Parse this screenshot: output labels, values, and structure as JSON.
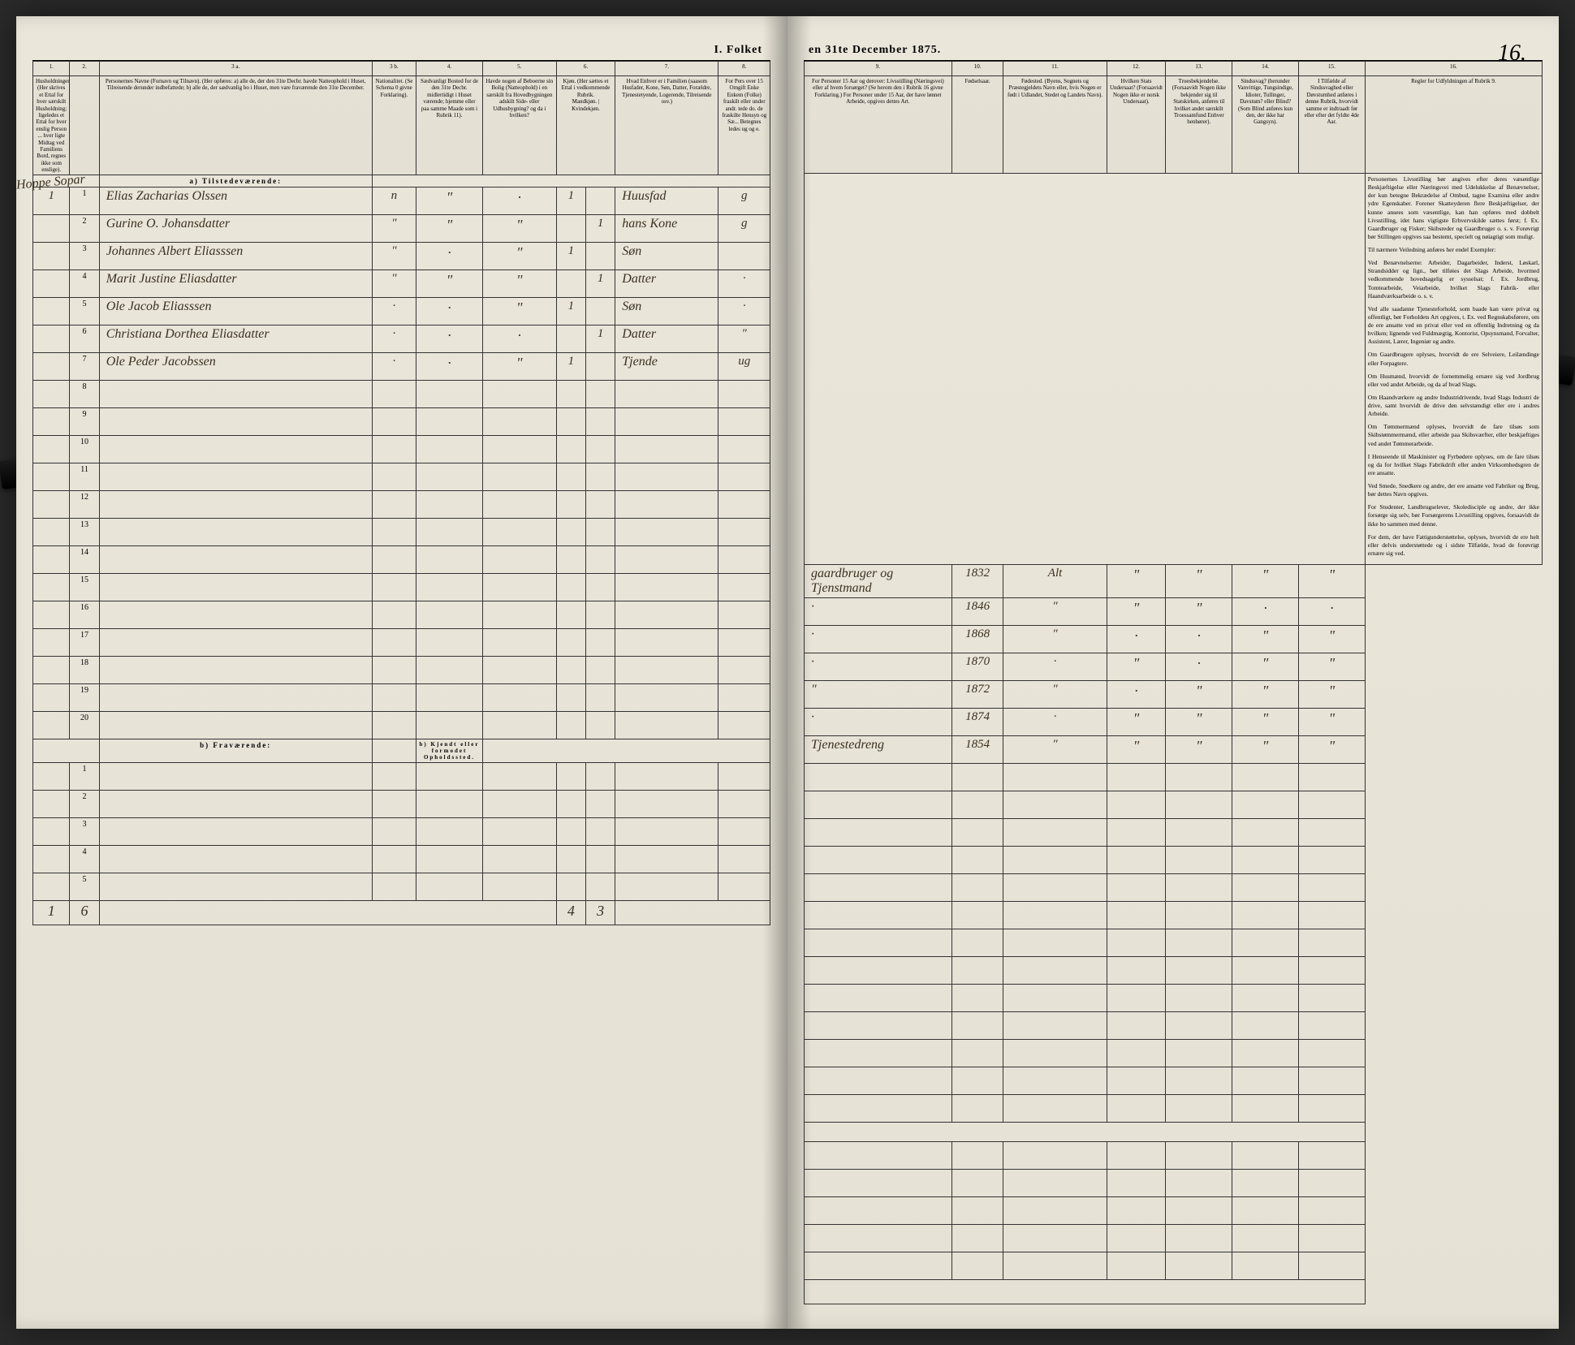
{
  "title_left": "I. Folket",
  "title_right": "en 31te December 1875.",
  "page_number": "16.",
  "margin_note": "Hoppe\nSopar",
  "columns": {
    "left_nums": [
      "1.",
      "2.",
      "3 a.",
      "3 b.",
      "4.",
      "5.",
      "6.",
      "7.",
      "8."
    ],
    "right_nums": [
      "9.",
      "10.",
      "11.",
      "12.",
      "13.",
      "14.",
      "15.",
      "16."
    ],
    "h1": "Husholdninger. (Her skrives et Ettal for hver særskilt Husholdning; ligeledes et Ettal for hver enslig Person ... hver ligte Midtag ved Familiens Bord, regnes ikke som enslige).",
    "h3a": "Personernes Navne (Fornavn og Tilnavn). (Her opføres: a) alle de, der den 31te Decbr. havde Natteophold i Huset, Tilreisende derunder indbefattede; b) alle de, der sædvanlig bo i Huset, men vare fraværende den 31te December.",
    "h3b": "Nationalitet. (Se Schema 0 givne Forklaring).",
    "h4": "Sædvanligt Bosted for de den 31te Decbr. midlertidigt i Huset værende; hjemme eller paa samme Maade som i Rubrik 11).",
    "h5": "Havde nogen af Beboerne sin Bolig (Natteophold) i en særskilt fra Hovedbygningen adskilt Side- eller Udhusbygning? og da i hvilken?",
    "h6": "Kjøn. (Her sættes et Ettal i vedkommende Rubrik.",
    "h6a": "Mandkjøn.",
    "h6b": "Kvindekjøn.",
    "h7": "Hvad Enhver er i Familien (saasom Husfader, Kone, Søn, Datter, Forældre, Tjenestetyende, Logerende, Tilreisende osv.)",
    "h8": "For Pers over 15 Omgift Enke Enkem (Folke) fraskilt eller under andr. tede do. de fraskilte Hensyn og Sæ... Betegnes ledes ug og e.",
    "h9": "For Personer 15 Aar og derover: Livsstilling (Næringsvei) eller af hvem forsørget? (Se herom den i Rubrik 16 givne Forklaring.) For Personer under 15 Aar, der have lønnet Arbeide, opgives dettes Art.",
    "h10": "Fødselsaar.",
    "h11": "Fødested. (Byens, Sognets og Præstegjeldets Navn eller, hvis Nogen er født i Udlandet, Stedet og Landets Navn).",
    "h12": "Hvilken Stats Undersaat? (Forsaavidt Nogen ikke er norsk Undersaat).",
    "h13": "Troesbekjendelse. (Forsaavidt Nogen ikke bekjender sig til Statskirken, anføres til hvilket andet særskilt Troessamfund Enhver henhører).",
    "h14": "Sindssvag? (herunder Vanvittige, Tungsindige, Idioter, Tullinger, Davstum? eller Blind? (Som Blind anføres kun den, der ikke har Gangsyn).",
    "h15": "I Tilfælde af Sindssvaghed eller Døvstumhed anføres i denne Rubrik, hvorvidt samme er indtraadt før eller efter det fyldte 4de Aar.",
    "h16_title": "Regler for Udfyldningen af Rubrik 9."
  },
  "section_a": "a) Tilstedeværende:",
  "section_b": "b) Fraværende:",
  "section_b_note": "b) Kjendt eller formodet Opholdssted.",
  "rows": [
    {
      "hh": "1",
      "n": "1",
      "name": "Elias Zacharias Olssen",
      "nat": "n",
      "c4": "\"",
      "c5": "·",
      "m": "1",
      "k": "",
      "fam": "Huusfad",
      "ms": "g",
      "occ": "gaardbruger og Tjenstmand",
      "yr": "1832",
      "born": "Alt",
      "c12": "\"",
      "c13": "\"",
      "c14": "\"",
      "c15": "\""
    },
    {
      "hh": "",
      "n": "2",
      "name": "Gurine O. Johansdatter",
      "nat": "\"",
      "c4": "\"",
      "c5": "\"",
      "m": "",
      "k": "1",
      "fam": "hans Kone",
      "ms": "g",
      "occ": "·",
      "yr": "1846",
      "born": "\"",
      "c12": "\"",
      "c13": "\"",
      "c14": "·",
      "c15": "·"
    },
    {
      "hh": "",
      "n": "3",
      "name": "Johannes Albert Eliasssen",
      "nat": "\"",
      "c4": "·",
      "c5": "\"",
      "m": "1",
      "k": "",
      "fam": "Søn",
      "ms": "",
      "occ": "·",
      "yr": "1868",
      "born": "\"",
      "c12": "·",
      "c13": "·",
      "c14": "\"",
      "c15": "\""
    },
    {
      "hh": "",
      "n": "4",
      "name": "Marit Justine Eliasdatter",
      "nat": "\"",
      "c4": "\"",
      "c5": "\"",
      "m": "",
      "k": "1",
      "fam": "Datter",
      "ms": "·",
      "occ": "·",
      "yr": "1870",
      "born": "·",
      "c12": "\"",
      "c13": "·",
      "c14": "\"",
      "c15": "\""
    },
    {
      "hh": "",
      "n": "5",
      "name": "Ole Jacob Eliasssen",
      "nat": "·",
      "c4": "·",
      "c5": "\"",
      "m": "1",
      "k": "",
      "fam": "Søn",
      "ms": "·",
      "occ": "\"",
      "yr": "1872",
      "born": "\"",
      "c12": "·",
      "c13": "\"",
      "c14": "\"",
      "c15": "\""
    },
    {
      "hh": "",
      "n": "6",
      "name": "Christiana Dorthea Eliasdatter",
      "nat": "·",
      "c4": "·",
      "c5": "·",
      "m": "",
      "k": "1",
      "fam": "Datter",
      "ms": "\"",
      "occ": "·",
      "yr": "1874",
      "born": "·",
      "c12": "\"",
      "c13": "\"",
      "c14": "\"",
      "c15": "\""
    },
    {
      "hh": "",
      "n": "7",
      "name": "Ole Peder Jacobssen",
      "nat": "·",
      "c4": "·",
      "c5": "\"",
      "m": "1",
      "k": "",
      "fam": "Tjende",
      "ms": "ug",
      "occ": "Tjenestedreng",
      "yr": "1854",
      "born": "\"",
      "c12": "\"",
      "c13": "\"",
      "c14": "\"",
      "c15": "\""
    }
  ],
  "empty_rows_a": [
    "8",
    "9",
    "10",
    "11",
    "12",
    "13",
    "14",
    "15",
    "16",
    "17",
    "18",
    "19",
    "20"
  ],
  "empty_rows_b": [
    "1",
    "2",
    "3",
    "4",
    "5"
  ],
  "footer": {
    "left_hh": "1",
    "left_b": "6",
    "mid_m": "4",
    "mid_k": "3"
  },
  "sidebar": [
    "Personernes Livsstilling bør angives efter deres væsentlige Beskjæftigelse eller Næringsvei med Udelukkelse af Benævnelser, der kun betegne Bekrædelse af Ombud, tagne Examina eller andre ydre Egenskaber. Forener Skatteyderen flere Beskjæftigelser, der kunne ansees som væsentlige, kan han opføres med dobbelt Livsstilling, idet hans vigtigste Erhvervskilde sættes først; f. Ex. Gaardbruger og Fisker; Skibsreder og Gaardbruger o. s. v. Forøvrigt bør Stillingen opgives saa bestemt, specielt og nøiagtigt som muligt.",
    "Til nærmere Veiledning anføres her endel Exempler:",
    "Ved Benævnelserne: Arbeider, Dagarbeider, Inderst, Løskarl, Strandsidder og lign., bør tilføies det Slags Arbeide, hvormed vedkommende hovedsagelig er sysselsat; f. Ex. Jordbrug, Tomtearbeide, Veiarbeide, hvilket Slags Fabrik- eller Haandværksarbeide o. s. v.",
    "Ved alle saadanne Tjenesteforhold, som baade kan være privat og offentligt, bør Forholdets Art opgives, t. Ex. ved Regnskabsførere, om de ere ansatte ved en privat eller ved en offentlig Indretning og da hvilken; lignende ved Fuldmægtig, Kontorist, Opsynsmand, Forvalter, Assistent, Lærer, Ingeniør og andre.",
    "Om Gaardbrugere oplyses, hvorvidt de ere Selveiere, Leilændinge eller Forpagtere.",
    "Om Husmænd, hvorvidt de fornemmelig ernære sig ved Jordbrug eller ved andet Arbeide, og da af hvad Slags.",
    "Om Haandværkere og andre Industridrivende, hvad Slags Industri de drive, samt hvorvidt de drive den selvstændigt eller ere i andres Arbeide.",
    "Om Tømmermænd oplyses, hvorvidt de fare tilsøs som Skibstømmermænd, eller arbeide paa Skibsværfter, eller beskjæftiges ved andet Tømmerarbeide.",
    "I Henseende til Maskinister og Fyrbødere oplyses, om de fare tilsøs og da for hvilket Slags Fabrikdrift eller anden Virksomhedsgren de ere ansatte.",
    "Ved Smede, Snedkere og andre, der ere ansatte ved Fabriker og Brug, bør dettes Navn opgives.",
    "For Studenter, Landbrugselever, Skoledisciple og andre, der ikke forsørge sig selv, bør Forsørgerens Livsstilling opgives, forsaavidt de ikke bo sammen med denne.",
    "For dem, der have Fattigunderstøttelse, oplyses, hvorvidt de ere helt eller delvis understøttede og i sidste Tilfælde, hvad de forøvrigt ernære sig ved."
  ],
  "col_widths_left": {
    "c1": "5%",
    "c2": "4%",
    "c3a": "37%",
    "c3b": "6%",
    "c4": "9%",
    "c5": "10%",
    "c6a": "4%",
    "c6b": "4%",
    "c7": "14%",
    "c8": "7%"
  },
  "col_widths_right": {
    "c9": "20%",
    "c10": "7%",
    "c11": "14%",
    "c12": "8%",
    "c13": "9%",
    "c14": "9%",
    "c15": "9%",
    "c16": "24%"
  }
}
